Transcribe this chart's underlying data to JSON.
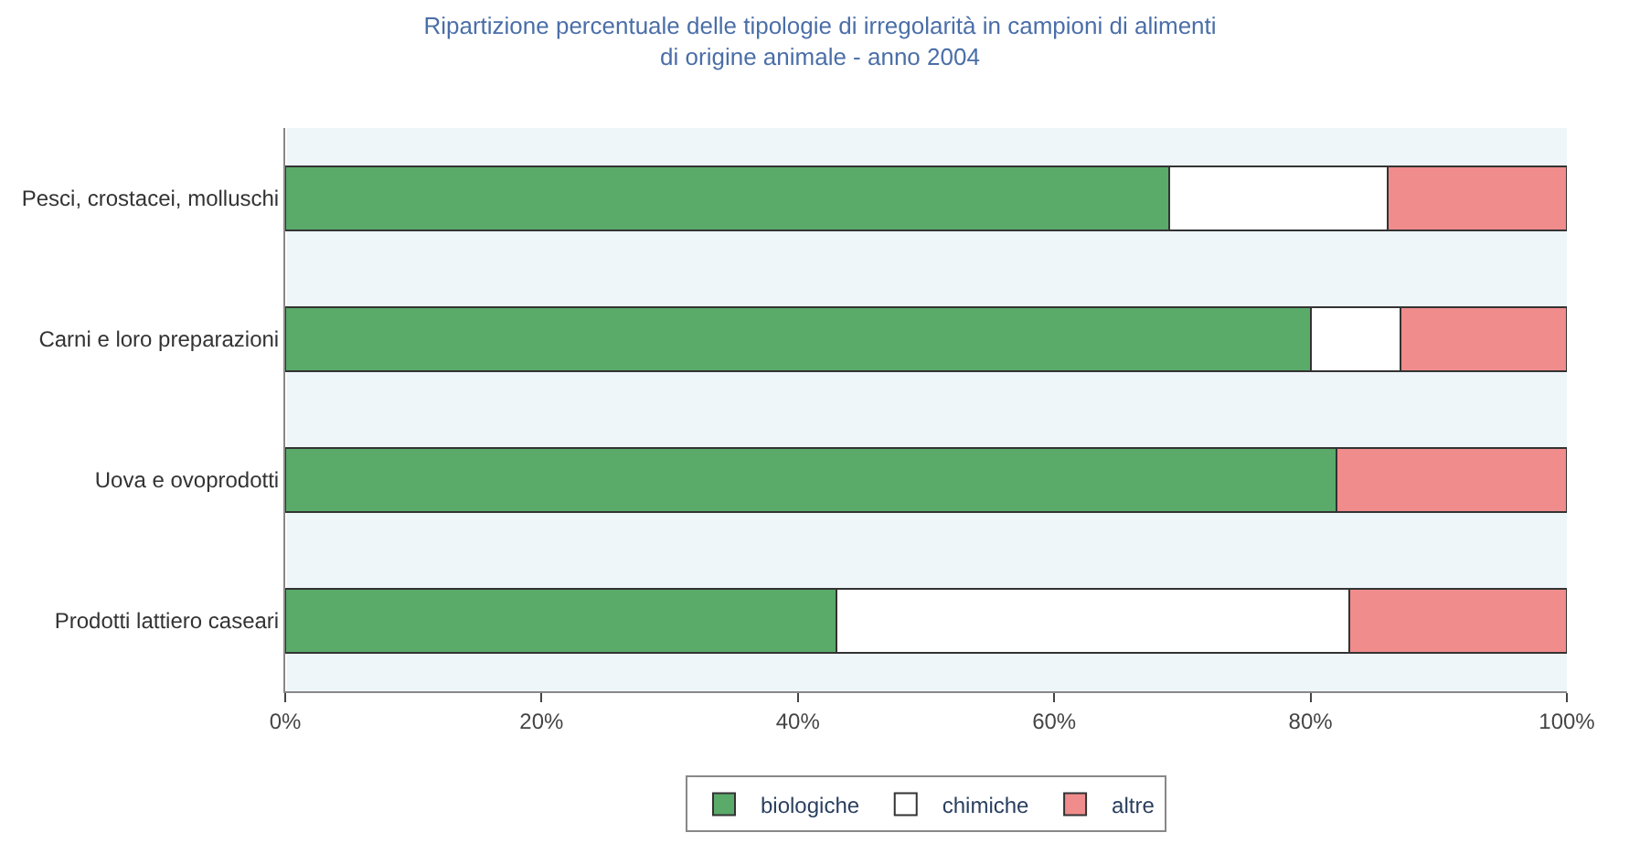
{
  "chart_data": {
    "type": "bar",
    "orientation": "horizontal",
    "stacked": true,
    "title": "Ripartizione percentuale delle tipologie di irregolarità in campioni di alimenti di origine animale - anno 2004",
    "categories": [
      "Pesci, crostacei, molluschi",
      "Carni e loro preparazioni",
      "Uova e ovoprodotti",
      "Prodotti lattiero caseari"
    ],
    "series": [
      {
        "name": "biologiche",
        "color": "#5aaa6a",
        "values": [
          69,
          80,
          82,
          43
        ]
      },
      {
        "name": "chimiche",
        "color": "#ffffff",
        "values": [
          17,
          7,
          0,
          40
        ]
      },
      {
        "name": "altre",
        "color": "#f08c8c",
        "values": [
          14,
          13,
          18,
          17
        ]
      }
    ],
    "xlim": [
      0,
      100
    ],
    "xticks": [
      {
        "value": 0,
        "label": "0%"
      },
      {
        "value": 20,
        "label": "20%"
      },
      {
        "value": 40,
        "label": "40%"
      },
      {
        "value": 60,
        "label": "60%"
      },
      {
        "value": 80,
        "label": "80%"
      },
      {
        "value": 100,
        "label": "100%"
      }
    ],
    "grid": false,
    "legend": "bottom"
  }
}
